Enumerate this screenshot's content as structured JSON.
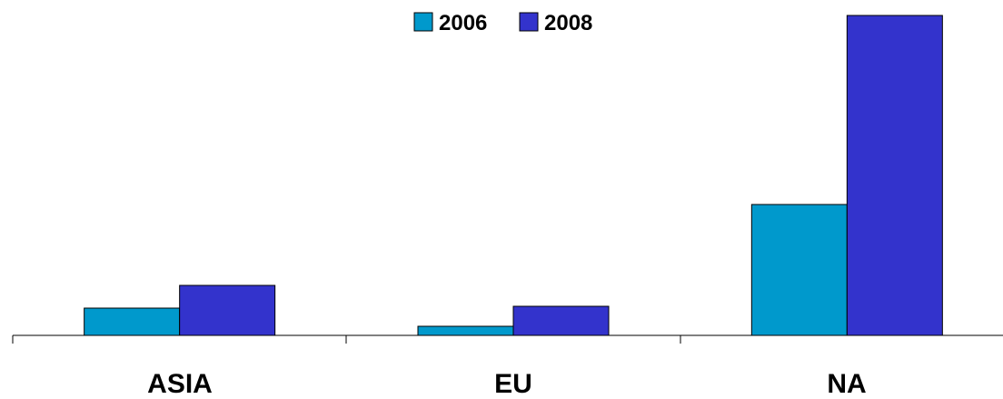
{
  "chart_data": {
    "type": "bar",
    "categories": [
      "ASIA",
      "EU",
      "NA"
    ],
    "series": [
      {
        "name": "2006",
        "color": "#0099CC",
        "values": [
          30,
          10,
          144
        ]
      },
      {
        "name": "2008",
        "color": "#3333CC",
        "values": [
          55,
          32,
          352
        ]
      }
    ],
    "ylim": [
      0,
      360
    ],
    "grid": false,
    "legend": "top"
  }
}
